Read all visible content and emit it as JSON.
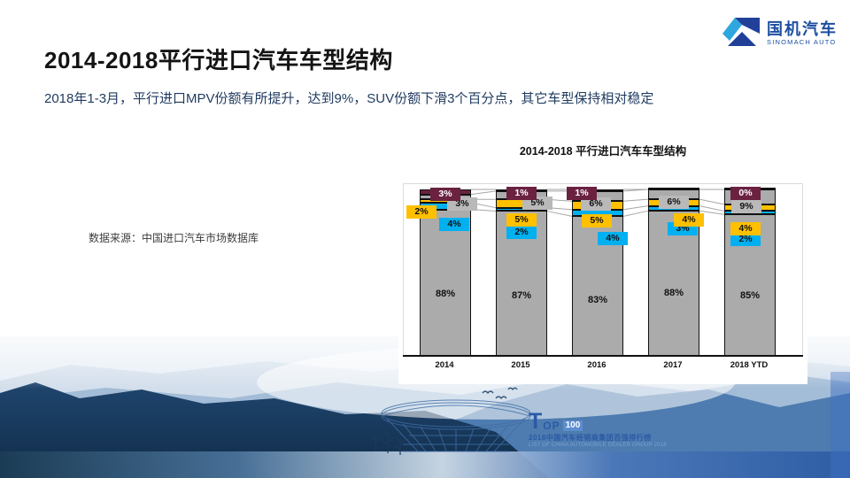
{
  "slide": {
    "title": "2014-2018平行进口汽车车型结构",
    "subtitle": "2018年1-3月，平行进口MPV份额有所提升，达到9%，SUV份额下滑3个百分点，其它车型保持相对稳定",
    "data_source": "数据来源：中国进口汽车市场数据库"
  },
  "logo": {
    "cn": "国机汽车",
    "en": "SINOMACH AUTO",
    "colors": {
      "light_blue": "#2EA7E0",
      "navy": "#21409A",
      "text_blue": "#1d4fa0"
    }
  },
  "footer_badge": {
    "t": "T",
    "op": "OP",
    "num": "100",
    "line1": "2018中国汽车经销商集团百强排行榜",
    "line2": "LIST OF CHINA AUTOMOBILE DEALER GROUP 2018"
  },
  "chart_data": {
    "type": "bar",
    "stacked": true,
    "percent": true,
    "title": "2014-2018 平行进口汽车车型结构",
    "categories": [
      "2014",
      "2015",
      "2016",
      "2017",
      "2018 YTD"
    ],
    "series": [
      {
        "name": "gray-large-bottom",
        "color": "#ABABAB",
        "values": [
          88,
          87,
          83,
          88,
          85
        ],
        "labels": [
          "88%",
          "87%",
          "83%",
          "88%",
          "85%"
        ],
        "label_color": "#111111",
        "chip": false
      },
      {
        "name": "blue",
        "color": "#00B0F0",
        "values": [
          4,
          2,
          4,
          3,
          2
        ],
        "labels": [
          "4%",
          "2%",
          "4%",
          "3%",
          "2%"
        ],
        "label_color": "#111111",
        "chip": true
      },
      {
        "name": "yellow",
        "color": "#FFC000",
        "values": [
          2,
          5,
          5,
          4,
          4
        ],
        "labels": [
          "2%",
          "5%",
          "5%",
          "4%",
          "4%"
        ],
        "label_color": "#111111",
        "chip": true
      },
      {
        "name": "gray-small",
        "color": "#ABABAB",
        "chip_color": "#B9B9B9",
        "values": [
          3,
          5,
          6,
          6,
          9
        ],
        "labels": [
          "3%",
          "5%",
          "6%",
          "6%",
          "9%"
        ],
        "label_color": "#111111",
        "chip": true
      },
      {
        "name": "maroon",
        "color": "#6A2240",
        "values": [
          3,
          1,
          1,
          0,
          0
        ],
        "labels": [
          "3%",
          "1%",
          "1%",
          "",
          "0%"
        ],
        "label_color": "#FFFFFF",
        "chip": true
      }
    ],
    "ylim": [
      0,
      100
    ],
    "legend": "none",
    "grid": false,
    "connector_color": "#A6A6A6",
    "axis_color": "#111111",
    "segment_border_color": "#111111"
  }
}
